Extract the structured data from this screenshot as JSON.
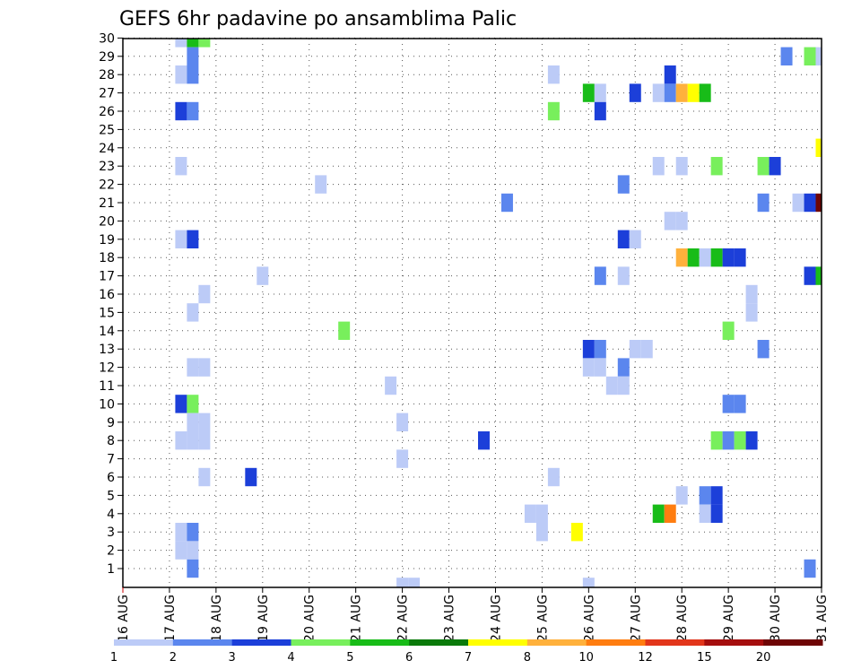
{
  "chart_data": {
    "type": "heatmap",
    "title": "GEFS 6hr padavine po ansamblima Palic",
    "xlabel": "",
    "ylabel": "",
    "x_tick_labels": [
      "16 AUG",
      "17 AUG",
      "18 AUG",
      "19 AUG",
      "20 AUG",
      "21 AUG",
      "22 AUG",
      "23 AUG",
      "24 AUG",
      "25 AUG",
      "26 AUG",
      "27 AUG",
      "28 AUG",
      "29 AUG",
      "30 AUG",
      "31 AUG"
    ],
    "y_tick_labels": [
      "1",
      "2",
      "3",
      "4",
      "5",
      "6",
      "7",
      "8",
      "9",
      "10",
      "11",
      "12",
      "13",
      "14",
      "15",
      "16",
      "17",
      "18",
      "19",
      "20",
      "21",
      "22",
      "23",
      "24",
      "25",
      "26",
      "27",
      "28",
      "29",
      "30"
    ],
    "xlim_days": [
      0,
      15
    ],
    "ylim": [
      1,
      30
    ],
    "step_hours": 6,
    "grid": true,
    "legend_placement": "bottom",
    "colorbar": {
      "labels": [
        "1",
        "2",
        "3",
        "4",
        "5",
        "6",
        "7",
        "8",
        "10",
        "12",
        "15",
        "20"
      ],
      "colors": [
        "#bccbf7",
        "#5b86ee",
        "#1c3fd9",
        "#78ef5c",
        "#18bc18",
        "#0a7a0a",
        "#ffff00",
        "#ffb13c",
        "#ff7d10",
        "#e2361b",
        "#a50e0e",
        "#6e0505"
      ]
    },
    "cells": [
      {
        "m": 30,
        "day": 1.25,
        "v": 1
      },
      {
        "m": 30,
        "day": 1.5,
        "v": 5
      },
      {
        "m": 30,
        "day": 1.75,
        "v": 4
      },
      {
        "m": 29,
        "day": 1.5,
        "v": 2
      },
      {
        "m": 29,
        "day": 14.25,
        "v": 2
      },
      {
        "m": 29,
        "day": 14.75,
        "v": 4
      },
      {
        "m": 29,
        "day": 15.0,
        "v": 1
      },
      {
        "m": 28,
        "day": 1.25,
        "v": 1
      },
      {
        "m": 28,
        "day": 1.5,
        "v": 2
      },
      {
        "m": 28,
        "day": 9.25,
        "v": 1
      },
      {
        "m": 28,
        "day": 11.75,
        "v": 3
      },
      {
        "m": 27,
        "day": 10.0,
        "v": 5
      },
      {
        "m": 27,
        "day": 10.25,
        "v": 1
      },
      {
        "m": 27,
        "day": 11.0,
        "v": 3
      },
      {
        "m": 27,
        "day": 11.5,
        "v": 1
      },
      {
        "m": 27,
        "day": 11.75,
        "v": 2
      },
      {
        "m": 27,
        "day": 12.0,
        "v": 8
      },
      {
        "m": 27,
        "day": 12.25,
        "v": 7
      },
      {
        "m": 27,
        "day": 12.5,
        "v": 5
      },
      {
        "m": 26,
        "day": 1.25,
        "v": 3
      },
      {
        "m": 26,
        "day": 1.5,
        "v": 2
      },
      {
        "m": 26,
        "day": 9.25,
        "v": 4
      },
      {
        "m": 26,
        "day": 10.25,
        "v": 3
      },
      {
        "m": 24,
        "day": 15.0,
        "v": 7
      },
      {
        "m": 23,
        "day": 1.25,
        "v": 1
      },
      {
        "m": 23,
        "day": 11.5,
        "v": 1
      },
      {
        "m": 23,
        "day": 12.0,
        "v": 1
      },
      {
        "m": 23,
        "day": 12.75,
        "v": 4
      },
      {
        "m": 23,
        "day": 13.75,
        "v": 4
      },
      {
        "m": 23,
        "day": 14.0,
        "v": 3
      },
      {
        "m": 22,
        "day": 4.25,
        "v": 1
      },
      {
        "m": 22,
        "day": 10.75,
        "v": 2
      },
      {
        "m": 21,
        "day": 8.25,
        "v": 2
      },
      {
        "m": 21,
        "day": 13.75,
        "v": 2
      },
      {
        "m": 21,
        "day": 14.5,
        "v": 1
      },
      {
        "m": 21,
        "day": 14.75,
        "v": 3
      },
      {
        "m": 21,
        "day": 15.0,
        "v": 20
      },
      {
        "m": 20,
        "day": 11.75,
        "v": 1
      },
      {
        "m": 20,
        "day": 12.0,
        "v": 1
      },
      {
        "m": 19,
        "day": 1.25,
        "v": 1
      },
      {
        "m": 19,
        "day": 1.5,
        "v": 3
      },
      {
        "m": 19,
        "day": 10.75,
        "v": 3
      },
      {
        "m": 19,
        "day": 11.0,
        "v": 1
      },
      {
        "m": 18,
        "day": 12.0,
        "v": 8
      },
      {
        "m": 18,
        "day": 12.25,
        "v": 5
      },
      {
        "m": 18,
        "day": 12.5,
        "v": 1
      },
      {
        "m": 18,
        "day": 12.75,
        "v": 5
      },
      {
        "m": 18,
        "day": 13.0,
        "v": 3
      },
      {
        "m": 18,
        "day": 13.25,
        "v": 3
      },
      {
        "m": 17,
        "day": 3.0,
        "v": 1
      },
      {
        "m": 17,
        "day": 10.25,
        "v": 2
      },
      {
        "m": 17,
        "day": 10.75,
        "v": 1
      },
      {
        "m": 17,
        "day": 14.75,
        "v": 3
      },
      {
        "m": 17,
        "day": 15.0,
        "v": 5
      },
      {
        "m": 16,
        "day": 1.75,
        "v": 1
      },
      {
        "m": 16,
        "day": 13.5,
        "v": 1
      },
      {
        "m": 15,
        "day": 1.5,
        "v": 1
      },
      {
        "m": 15,
        "day": 13.5,
        "v": 1
      },
      {
        "m": 14,
        "day": 4.75,
        "v": 4
      },
      {
        "m": 14,
        "day": 13.0,
        "v": 4
      },
      {
        "m": 13,
        "day": 10.0,
        "v": 3
      },
      {
        "m": 13,
        "day": 10.25,
        "v": 2
      },
      {
        "m": 13,
        "day": 11.0,
        "v": 1
      },
      {
        "m": 13,
        "day": 11.25,
        "v": 1
      },
      {
        "m": 13,
        "day": 13.75,
        "v": 2
      },
      {
        "m": 12,
        "day": 1.5,
        "v": 1
      },
      {
        "m": 12,
        "day": 1.75,
        "v": 1
      },
      {
        "m": 12,
        "day": 10.0,
        "v": 1
      },
      {
        "m": 12,
        "day": 10.25,
        "v": 1
      },
      {
        "m": 12,
        "day": 10.75,
        "v": 2
      },
      {
        "m": 11,
        "day": 5.75,
        "v": 1
      },
      {
        "m": 11,
        "day": 10.5,
        "v": 1
      },
      {
        "m": 11,
        "day": 10.75,
        "v": 1
      },
      {
        "m": 10,
        "day": 1.25,
        "v": 3
      },
      {
        "m": 10,
        "day": 1.5,
        "v": 4
      },
      {
        "m": 10,
        "day": 13.0,
        "v": 2
      },
      {
        "m": 10,
        "day": 13.25,
        "v": 2
      },
      {
        "m": 9,
        "day": 1.5,
        "v": 1
      },
      {
        "m": 9,
        "day": 1.75,
        "v": 1
      },
      {
        "m": 9,
        "day": 6.0,
        "v": 1
      },
      {
        "m": 8,
        "day": 1.25,
        "v": 1
      },
      {
        "m": 8,
        "day": 1.5,
        "v": 1
      },
      {
        "m": 8,
        "day": 1.75,
        "v": 1
      },
      {
        "m": 8,
        "day": 7.75,
        "v": 3
      },
      {
        "m": 8,
        "day": 12.75,
        "v": 4
      },
      {
        "m": 8,
        "day": 13.0,
        "v": 2
      },
      {
        "m": 8,
        "day": 13.25,
        "v": 4
      },
      {
        "m": 8,
        "day": 13.5,
        "v": 3
      },
      {
        "m": 7,
        "day": 6.0,
        "v": 1
      },
      {
        "m": 6,
        "day": 1.75,
        "v": 1
      },
      {
        "m": 6,
        "day": 2.75,
        "v": 3
      },
      {
        "m": 6,
        "day": 9.25,
        "v": 1
      },
      {
        "m": 5,
        "day": 12.0,
        "v": 1
      },
      {
        "m": 5,
        "day": 12.5,
        "v": 2
      },
      {
        "m": 5,
        "day": 12.75,
        "v": 3
      },
      {
        "m": 4,
        "day": 8.75,
        "v": 1
      },
      {
        "m": 4,
        "day": 9.0,
        "v": 1
      },
      {
        "m": 4,
        "day": 11.5,
        "v": 5
      },
      {
        "m": 4,
        "day": 11.75,
        "v": 10
      },
      {
        "m": 4,
        "day": 12.5,
        "v": 1
      },
      {
        "m": 4,
        "day": 12.75,
        "v": 3
      },
      {
        "m": 3,
        "day": 1.25,
        "v": 1
      },
      {
        "m": 3,
        "day": 1.5,
        "v": 2
      },
      {
        "m": 3,
        "day": 9.0,
        "v": 1
      },
      {
        "m": 3,
        "day": 9.75,
        "v": 7
      },
      {
        "m": 2,
        "day": 1.25,
        "v": 1
      },
      {
        "m": 2,
        "day": 1.5,
        "v": 1
      },
      {
        "m": 1,
        "day": 1.5,
        "v": 2
      },
      {
        "m": 1,
        "day": 14.75,
        "v": 2
      },
      {
        "m": 0,
        "day": 6.0,
        "v": 1
      },
      {
        "m": 0,
        "day": 6.25,
        "v": 1
      },
      {
        "m": 0,
        "day": 10.0,
        "v": 1
      }
    ]
  }
}
